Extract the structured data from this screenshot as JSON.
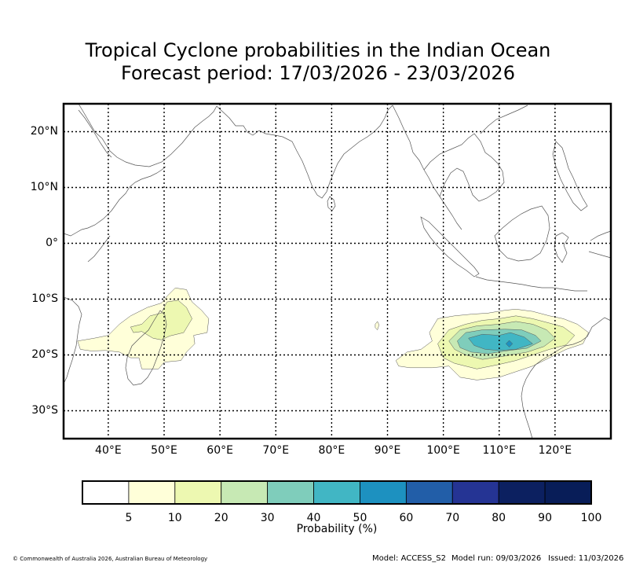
{
  "title": {
    "line1": "Tropical Cyclone probabilities in the Indian Ocean",
    "line2": "Forecast period: 17/03/2026 - 23/03/2026"
  },
  "map": {
    "lon_range": [
      32,
      130
    ],
    "lat_range": [
      -35,
      25
    ],
    "lat_ticks": [
      {
        "value": 20,
        "label": "20°N"
      },
      {
        "value": 10,
        "label": "10°N"
      },
      {
        "value": 0,
        "label": "0°"
      },
      {
        "value": -10,
        "label": "10°S"
      },
      {
        "value": -20,
        "label": "20°S"
      },
      {
        "value": -30,
        "label": "30°S"
      }
    ],
    "lon_ticks": [
      {
        "value": 40,
        "label": "40°E"
      },
      {
        "value": 50,
        "label": "50°E"
      },
      {
        "value": 60,
        "label": "60°E"
      },
      {
        "value": 70,
        "label": "70°E"
      },
      {
        "value": 80,
        "label": "80°E"
      },
      {
        "value": 90,
        "label": "90°E"
      },
      {
        "value": 100,
        "label": "100°E"
      },
      {
        "value": 110,
        "label": "110°E"
      },
      {
        "value": 120,
        "label": "120°E"
      }
    ],
    "probability_areas": [
      {
        "region": "south-west indian ocean / madagascar",
        "max_level": 10,
        "levels": [
          {
            "level": 5,
            "lonlat": [
              [
                34.5,
                -17.5
              ],
              [
                37.5,
                -17
              ],
              [
                40,
                -16.5
              ],
              [
                42,
                -14.5
              ],
              [
                44,
                -13
              ],
              [
                47,
                -11.5
              ],
              [
                49.5,
                -10.7
              ],
              [
                50.5,
                -9.5
              ],
              [
                52,
                -8
              ],
              [
                54,
                -8.3
              ],
              [
                55,
                -10.5
              ],
              [
                56.7,
                -12
              ],
              [
                58,
                -13.5
              ],
              [
                57.7,
                -16
              ],
              [
                55.3,
                -16.5
              ],
              [
                55.5,
                -18
              ],
              [
                54,
                -19.5
              ],
              [
                53,
                -21
              ],
              [
                50,
                -21.3
              ],
              [
                49,
                -22.5
              ],
              [
                46,
                -22.5
              ],
              [
                45.5,
                -20.5
              ],
              [
                44,
                -20.5
              ],
              [
                42,
                -19.5
              ],
              [
                39.5,
                -19.2
              ],
              [
                37,
                -19.3
              ],
              [
                35,
                -19
              ]
            ]
          },
          {
            "level": 10,
            "lonlat": [
              [
                44,
                -15
              ],
              [
                46,
                -14.5
              ],
              [
                47.5,
                -13
              ],
              [
                49.5,
                -12.5
              ],
              [
                50.5,
                -10.5
              ],
              [
                52.5,
                -10.2
              ],
              [
                54,
                -11.5
              ],
              [
                55,
                -13.5
              ],
              [
                53.5,
                -16
              ],
              [
                51,
                -16.6
              ],
              [
                49.5,
                -17.3
              ],
              [
                48,
                -17
              ],
              [
                46,
                -15.8
              ],
              [
                44.5,
                -16
              ]
            ]
          }
        ]
      },
      {
        "region": "central indian ocean speck",
        "max_level": 5,
        "levels": [
          {
            "level": 5,
            "lonlat": [
              [
                87.8,
                -14.5
              ],
              [
                88.2,
                -14
              ],
              [
                88.5,
                -14.6
              ],
              [
                88.2,
                -15.5
              ],
              [
                87.8,
                -15.1
              ]
            ]
          }
        ]
      },
      {
        "region": "south-east indian ocean / nw australia",
        "max_level": 50,
        "levels": [
          {
            "level": 5,
            "lonlat": [
              [
                91.5,
                -21
              ],
              [
                93.5,
                -19.5
              ],
              [
                96,
                -19
              ],
              [
                98,
                -17.5
              ],
              [
                97.5,
                -16
              ],
              [
                99,
                -13.5
              ],
              [
                102,
                -13
              ],
              [
                105,
                -12.7
              ],
              [
                108,
                -12.5
              ],
              [
                111,
                -12
              ],
              [
                113,
                -11.8
              ],
              [
                116,
                -12.2
              ],
              [
                119,
                -13
              ],
              [
                121.5,
                -13.5
              ],
              [
                124,
                -14.5
              ],
              [
                126,
                -16
              ],
              [
                125,
                -18
              ],
              [
                122,
                -19
              ],
              [
                119,
                -20.5
              ],
              [
                116,
                -22
              ],
              [
                113,
                -23
              ],
              [
                110,
                -24
              ],
              [
                106,
                -24.5
              ],
              [
                103,
                -24
              ],
              [
                101,
                -22
              ],
              [
                98,
                -22.3
              ],
              [
                94,
                -22.3
              ],
              [
                92,
                -22
              ]
            ]
          },
          {
            "level": 10,
            "lonlat": [
              [
                99,
                -18
              ],
              [
                101,
                -15.5
              ],
              [
                104,
                -14.5
              ],
              [
                107,
                -13.8
              ],
              [
                110,
                -13.5
              ],
              [
                113,
                -13
              ],
              [
                116,
                -13.5
              ],
              [
                119,
                -14.3
              ],
              [
                121.5,
                -15
              ],
              [
                123.5,
                -16.5
              ],
              [
                122,
                -18.2
              ],
              [
                119,
                -19
              ],
              [
                116,
                -20
              ],
              [
                113,
                -21
              ],
              [
                110,
                -21.7
              ],
              [
                106,
                -22.5
              ],
              [
                102,
                -21.5
              ],
              [
                100,
                -20.5
              ]
            ]
          },
          {
            "level": 20,
            "lonlat": [
              [
                101,
                -17.5
              ],
              [
                103,
                -15.5
              ],
              [
                106,
                -14.8
              ],
              [
                110,
                -14.5
              ],
              [
                113,
                -14
              ],
              [
                116,
                -14.5
              ],
              [
                118.5,
                -15.5
              ],
              [
                120,
                -17
              ],
              [
                118,
                -18.5
              ],
              [
                115,
                -19.5
              ],
              [
                111,
                -20.2
              ],
              [
                107,
                -20.8
              ],
              [
                104,
                -20
              ],
              [
                102,
                -19
              ]
            ]
          },
          {
            "level": 30,
            "lonlat": [
              [
                102.5,
                -17.5
              ],
              [
                104,
                -16
              ],
              [
                107,
                -15.5
              ],
              [
                111,
                -15.4
              ],
              [
                114,
                -15.5
              ],
              [
                116.5,
                -16.5
              ],
              [
                117.5,
                -17.5
              ],
              [
                115,
                -18.8
              ],
              [
                111,
                -19.3
              ],
              [
                108,
                -19.8
              ],
              [
                105,
                -19.5
              ],
              [
                103,
                -18.7
              ]
            ]
          },
          {
            "level": 40,
            "lonlat": [
              [
                104.5,
                -17
              ],
              [
                107,
                -16.3
              ],
              [
                110,
                -16.5
              ],
              [
                112,
                -16
              ],
              [
                114.5,
                -16.8
              ],
              [
                116,
                -18
              ],
              [
                113,
                -19
              ],
              [
                110,
                -19.2
              ],
              [
                107.5,
                -19
              ],
              [
                105.5,
                -18.3
              ]
            ]
          },
          {
            "level": 50,
            "lonlat": [
              [
                111.2,
                -18
              ],
              [
                111.8,
                -17.4
              ],
              [
                112.4,
                -18
              ],
              [
                111.8,
                -18.6
              ]
            ]
          }
        ]
      }
    ]
  },
  "colorbar": {
    "title": "Probability (%)",
    "bins": [
      {
        "color": "#ffffff"
      },
      {
        "color": "#ffffd9",
        "label": "5"
      },
      {
        "color": "#edf8b1",
        "label": "10"
      },
      {
        "color": "#c7e9b4",
        "label": "20"
      },
      {
        "color": "#7fcdbb",
        "label": "30"
      },
      {
        "color": "#41b6c4",
        "label": "40"
      },
      {
        "color": "#1d91c0",
        "label": "50"
      },
      {
        "color": "#225ea8",
        "label": "60"
      },
      {
        "color": "#253494",
        "label": "70"
      },
      {
        "color": "#0c2060",
        "label": "80"
      },
      {
        "color": "#081d58",
        "label": "90"
      }
    ],
    "end_label": "100"
  },
  "footer": {
    "copyright": "© Commonwealth of Australia 2026, Australian Bureau of Meteorology",
    "model": "Model: ACCESS_S2",
    "model_run": "Model run: 09/03/2026",
    "issued": "Issued: 11/03/2026"
  }
}
